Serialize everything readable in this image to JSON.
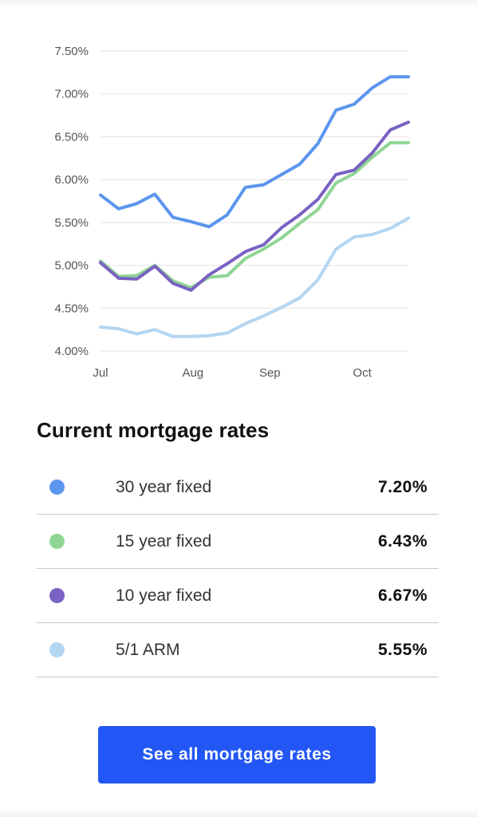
{
  "chart_data": {
    "type": "line",
    "y_ticks": [
      "7.50%",
      "7.00%",
      "6.50%",
      "6.00%",
      "5.50%",
      "5.00%",
      "4.50%",
      "4.00%"
    ],
    "y_tick_values": [
      7.5,
      7.0,
      6.5,
      6.0,
      5.5,
      5.0,
      4.5,
      4.0
    ],
    "ylim": [
      4.0,
      7.5
    ],
    "x_labels": [
      "Jul",
      "Aug",
      "Sep",
      "Oct"
    ],
    "x_label_index": [
      0,
      6,
      11,
      17
    ],
    "x_count": 21,
    "grid": true,
    "series": [
      {
        "name": "30 year fixed",
        "color": "#5b95ee",
        "values": [
          5.82,
          5.66,
          5.72,
          5.83,
          5.56,
          5.51,
          5.45,
          5.59,
          5.91,
          5.94,
          6.06,
          6.18,
          6.42,
          6.81,
          6.88,
          7.07,
          7.2,
          7.2
        ]
      },
      {
        "name": "15 year fixed",
        "color": "#8fd694",
        "values": [
          5.05,
          4.87,
          4.88,
          5.0,
          4.82,
          4.74,
          4.86,
          4.88,
          5.08,
          5.19,
          5.32,
          5.49,
          5.65,
          5.96,
          6.07,
          6.26,
          6.43,
          6.43
        ]
      },
      {
        "name": "10 year fixed",
        "color": "#7a62c2",
        "values": [
          5.03,
          4.85,
          4.84,
          4.99,
          4.79,
          4.71,
          4.89,
          5.02,
          5.16,
          5.24,
          5.44,
          5.59,
          5.77,
          6.06,
          6.11,
          6.31,
          6.58,
          6.67
        ]
      },
      {
        "name": "5/1 ARM",
        "color": "#b3d6f2",
        "values": [
          4.28,
          4.26,
          4.2,
          4.25,
          4.17,
          4.17,
          4.18,
          4.21,
          4.32,
          4.41,
          4.51,
          4.62,
          4.83,
          5.19,
          5.33,
          5.36,
          5.43,
          5.55
        ]
      }
    ]
  },
  "rates": {
    "title": "Current mortgage rates",
    "items": [
      {
        "label": "30 year fixed",
        "value": "7.20%",
        "color": "#5b95ee"
      },
      {
        "label": "15 year fixed",
        "value": "6.43%",
        "color": "#8fd694"
      },
      {
        "label": "10 year fixed",
        "value": "6.67%",
        "color": "#7a62c2"
      },
      {
        "label": "5/1 ARM",
        "value": "5.55%",
        "color": "#b3d6f2"
      }
    ]
  },
  "cta": {
    "label": "See all mortgage rates",
    "color": "#2357f5"
  }
}
